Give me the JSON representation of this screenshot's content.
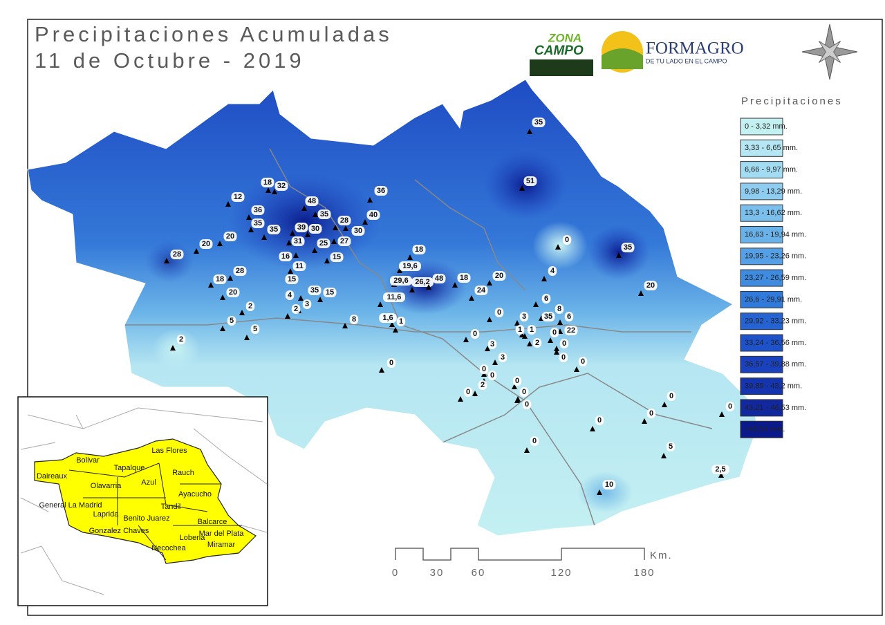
{
  "header": {
    "title_lines": [
      "Precipitaciones Acumuladas",
      "11 de Octubre - 2019"
    ]
  },
  "logos": {
    "zona": "ZONA",
    "campo": "CAMPO",
    "formagro": "FORMAGRO",
    "formagro_tagline": "DE TU LADO EN EL CAMPO"
  },
  "legend": {
    "title": "Precipitaciones",
    "items": [
      "0 - 3,32 mm.",
      "3,33 - 6,65 mm.",
      "6,66 - 9,97 mm.",
      "9,98 - 13,29 mm.",
      "13,3 - 16,62 mm.",
      "16,63 - 19,94 mm.",
      "19,95 - 23,26 mm.",
      "23,27 - 26,59 mm.",
      "26,6 - 29,91 mm.",
      "29,92 - 33,23 mm.",
      "33,24 - 36,56 mm.",
      "36,57 - 39,88 mm.",
      "39,89 - 43,2 mm.",
      "43,21 - 46,53 mm.",
      ">46,54 mm."
    ]
  },
  "stations": [
    "35",
    "51",
    "36",
    "12",
    "18",
    "32",
    "48",
    "35",
    "28",
    "40",
    "36",
    "35",
    "35",
    "39",
    "30",
    "30",
    "20",
    "20",
    "28",
    "31",
    "25",
    "27",
    "16",
    "11",
    "15",
    "18",
    "19,6",
    "28",
    "18",
    "15",
    "29,6",
    "26,2",
    "48",
    "18",
    "20",
    "24",
    "20",
    "35",
    "15",
    "4",
    "3",
    "2",
    "2",
    "11,6",
    "0",
    "35",
    "4",
    "20",
    "6",
    "8",
    "35",
    "6",
    "0",
    "3",
    "1,6",
    "1",
    "8",
    "5",
    "5",
    "2",
    "22",
    "1",
    "1",
    "0",
    "0",
    "2",
    "3",
    "0",
    "0",
    "3",
    "0",
    "0",
    "0",
    "0",
    "0",
    "2",
    "0",
    "0",
    "0",
    "0",
    "0",
    "0",
    "0",
    "0",
    "5",
    "2,5",
    "10"
  ],
  "scale": {
    "labels": [
      "0",
      "30",
      "60",
      "120",
      "180"
    ],
    "unit": "Km."
  },
  "inset": {
    "labels": [
      "Bolivar",
      "Daireaux",
      "Tapalque",
      "Las Flores",
      "Olavarria",
      "Azul",
      "Rauch",
      "Ayacucho",
      "General La Madrid",
      "Laprida",
      "Benito Juarez",
      "Tandil",
      "Balcarce",
      "Gonzalez Chaves",
      "Loberia",
      "Mar del Plata",
      "Miramar",
      "Necochea"
    ]
  }
}
